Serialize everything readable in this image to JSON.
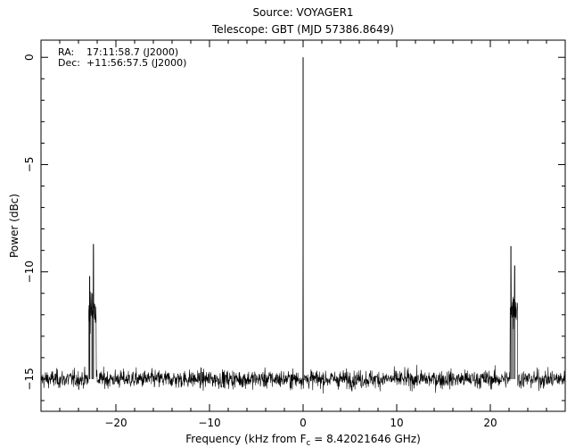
{
  "chart_data": {
    "type": "line",
    "title": "Source: VOYAGER1",
    "subtitle": "Telescope: GBT (MJD 57386.8649)",
    "annotations": [
      {
        "label": "RA:",
        "value": "17:11:58.7 (J2000)"
      },
      {
        "label": "Dec:",
        "value": "+11:56:57.5 (J2000)"
      }
    ],
    "xlabel_prefix": "Frequency (kHz from F",
    "xlabel_sub": "c",
    "xlabel_suffix": " = 8.42021646 GHz)",
    "ylabel": "Power (dBc)",
    "xlim": [
      -28,
      28
    ],
    "ylim": [
      -16.5,
      0.8
    ],
    "xticks": [
      -20,
      -10,
      0,
      10,
      20
    ],
    "xtick_labels": [
      "−20",
      "−10",
      "0",
      "10",
      "20"
    ],
    "yticks": [
      0,
      -5,
      -10,
      -15
    ],
    "ytick_labels": [
      "0",
      "−5",
      "−10",
      "−15"
    ],
    "grid": false,
    "series": [
      {
        "noise_floor": -15.0,
        "noise_spread": 0.3,
        "peaks": [
          {
            "x": 0.0,
            "y": 0.0
          },
          {
            "x": -22.8,
            "y": -10.2
          },
          {
            "x": -22.4,
            "y": -8.7
          },
          {
            "x": -22.55,
            "y": -11.0
          },
          {
            "x": 22.2,
            "y": -8.8
          },
          {
            "x": 22.6,
            "y": -9.7
          },
          {
            "x": 22.4,
            "y": -11.4
          }
        ]
      }
    ]
  }
}
